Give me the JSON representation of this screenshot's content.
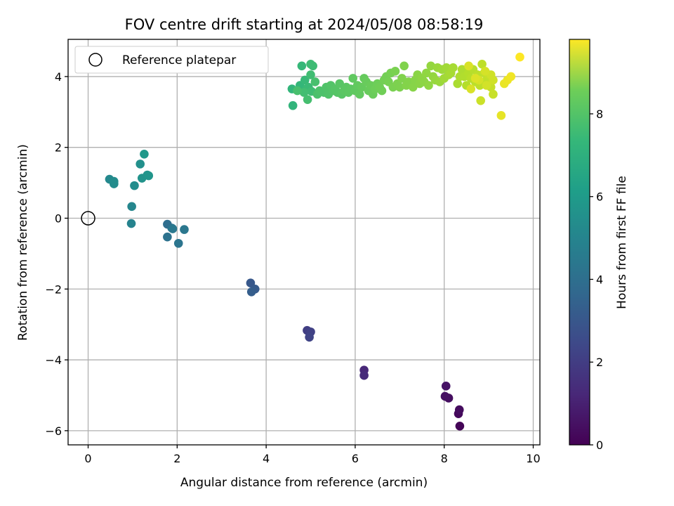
{
  "chart_data": {
    "type": "scatter",
    "title": "FOV centre drift starting at 2024/05/08 08:58:19",
    "xlabel": "Angular distance from reference (arcmin)",
    "ylabel": "Rotation from reference (arcmin)",
    "xlim": [
      -0.45,
      10.15
    ],
    "ylim": [
      -6.4,
      5.05
    ],
    "xticks": [
      0,
      2,
      4,
      6,
      8,
      10
    ],
    "yticks": [
      -6,
      -4,
      -2,
      0,
      2,
      4
    ],
    "xtick_labels": [
      "0",
      "2",
      "4",
      "6",
      "8",
      "10"
    ],
    "ytick_labels": [
      "−6",
      "−4",
      "−2",
      "0",
      "2",
      "4"
    ],
    "grid": true,
    "legend": {
      "placement": "top-left",
      "entries": [
        "Reference platepar"
      ]
    },
    "reference_point": {
      "x": 0,
      "y": 0
    },
    "colormap": "viridis",
    "colorbar": {
      "label": "Hours from first FF file",
      "range": [
        0,
        9.8
      ],
      "ticks": [
        0,
        2,
        4,
        6,
        8
      ],
      "tick_labels": [
        "0",
        "2",
        "4",
        "6",
        "8"
      ]
    },
    "points": [
      [
        8.35,
        -5.87,
        0.1
      ],
      [
        8.32,
        -5.52,
        0.2
      ],
      [
        8.34,
        -5.41,
        0.3
      ],
      [
        8.1,
        -5.08,
        0.35
      ],
      [
        8.02,
        -5.03,
        0.4
      ],
      [
        8.04,
        -4.74,
        0.5
      ],
      [
        6.2,
        -4.29,
        1.1
      ],
      [
        6.2,
        -4.44,
        1.2
      ],
      [
        4.92,
        -3.17,
        1.8
      ],
      [
        5.0,
        -3.21,
        1.9
      ],
      [
        4.97,
        -3.36,
        2.0
      ],
      [
        3.65,
        -1.83,
        2.7
      ],
      [
        3.75,
        -2.0,
        2.8
      ],
      [
        3.67,
        -2.08,
        2.9
      ],
      [
        1.78,
        -0.17,
        3.5
      ],
      [
        1.88,
        -0.28,
        3.6
      ],
      [
        1.78,
        -0.53,
        3.7
      ],
      [
        2.03,
        -0.71,
        3.8
      ],
      [
        2.16,
        -0.32,
        3.9
      ],
      [
        1.9,
        -0.3,
        3.95
      ],
      [
        0.97,
        -0.15,
        4.4
      ],
      [
        0.98,
        0.33,
        4.5
      ],
      [
        0.48,
        1.1,
        4.6
      ],
      [
        0.58,
        0.97,
        4.7
      ],
      [
        0.58,
        1.04,
        4.75
      ],
      [
        1.04,
        0.92,
        4.8
      ],
      [
        1.17,
        1.53,
        4.9
      ],
      [
        1.21,
        1.13,
        5.0
      ],
      [
        1.33,
        1.22,
        5.05
      ],
      [
        1.36,
        1.2,
        5.1
      ],
      [
        1.26,
        1.81,
        5.2
      ],
      [
        4.6,
        3.18,
        6.4
      ],
      [
        4.58,
        3.65,
        6.45
      ],
      [
        4.76,
        3.75,
        6.5
      ],
      [
        4.8,
        4.3,
        6.55
      ],
      [
        4.87,
        3.9,
        6.6
      ],
      [
        4.9,
        3.65,
        6.6
      ],
      [
        4.95,
        3.7,
        6.65
      ],
      [
        5.0,
        4.35,
        6.7
      ],
      [
        5.05,
        4.3,
        6.7
      ],
      [
        5.0,
        4.05,
        6.75
      ],
      [
        5.02,
        3.58,
        6.75
      ],
      [
        4.85,
        3.55,
        6.8
      ],
      [
        4.93,
        3.35,
        6.85
      ],
      [
        4.7,
        3.6,
        6.9
      ],
      [
        5.1,
        3.85,
        6.9
      ],
      [
        5.15,
        3.5,
        6.95
      ],
      [
        5.2,
        3.6,
        7.0
      ],
      [
        5.3,
        3.55,
        7.0
      ],
      [
        5.35,
        3.7,
        7.05
      ],
      [
        5.4,
        3.5,
        7.05
      ],
      [
        5.45,
        3.75,
        7.1
      ],
      [
        5.5,
        3.6,
        7.1
      ],
      [
        5.55,
        3.65,
        7.15
      ],
      [
        5.6,
        3.55,
        7.15
      ],
      [
        5.65,
        3.8,
        7.2
      ],
      [
        5.7,
        3.5,
        7.2
      ],
      [
        5.75,
        3.6,
        7.25
      ],
      [
        5.8,
        3.7,
        7.25
      ],
      [
        5.85,
        3.55,
        7.3
      ],
      [
        5.9,
        3.65,
        7.3
      ],
      [
        5.95,
        3.95,
        7.35
      ],
      [
        6.0,
        3.6,
        7.35
      ],
      [
        6.05,
        3.75,
        7.4
      ],
      [
        6.1,
        3.5,
        7.4
      ],
      [
        6.15,
        3.7,
        7.45
      ],
      [
        6.2,
        3.95,
        7.45
      ],
      [
        6.25,
        3.85,
        7.5
      ],
      [
        6.3,
        3.6,
        7.5
      ],
      [
        6.35,
        3.75,
        7.55
      ],
      [
        6.4,
        3.5,
        7.55
      ],
      [
        6.45,
        3.65,
        7.6
      ],
      [
        6.5,
        3.8,
        7.6
      ],
      [
        6.55,
        3.7,
        7.65
      ],
      [
        6.6,
        3.6,
        7.65
      ],
      [
        6.65,
        3.9,
        7.7
      ],
      [
        6.7,
        4.0,
        7.7
      ],
      [
        6.75,
        3.85,
        7.75
      ],
      [
        6.8,
        4.1,
        7.75
      ],
      [
        6.85,
        3.7,
        7.8
      ],
      [
        6.9,
        4.15,
        7.8
      ],
      [
        6.95,
        3.8,
        7.85
      ],
      [
        7.0,
        3.7,
        7.85
      ],
      [
        7.05,
        3.95,
        7.9
      ],
      [
        7.1,
        4.3,
        7.9
      ],
      [
        7.15,
        3.75,
        7.95
      ],
      [
        7.2,
        3.85,
        7.95
      ],
      [
        7.3,
        3.7,
        8.0
      ],
      [
        7.35,
        3.9,
        8.0
      ],
      [
        7.4,
        4.05,
        8.05
      ],
      [
        7.45,
        3.8,
        8.05
      ],
      [
        7.5,
        3.95,
        8.1
      ],
      [
        7.55,
        3.85,
        8.1
      ],
      [
        7.6,
        4.1,
        8.15
      ],
      [
        7.65,
        3.75,
        8.15
      ],
      [
        7.7,
        4.3,
        8.2
      ],
      [
        7.75,
        4.0,
        8.2
      ],
      [
        7.8,
        3.9,
        8.25
      ],
      [
        7.85,
        4.25,
        8.3
      ],
      [
        7.9,
        3.85,
        8.3
      ],
      [
        7.95,
        4.2,
        8.35
      ],
      [
        8.0,
        3.95,
        8.4
      ],
      [
        8.05,
        4.25,
        8.4
      ],
      [
        8.1,
        4.05,
        8.45
      ],
      [
        8.15,
        4.1,
        8.5
      ],
      [
        8.2,
        4.25,
        8.5
      ],
      [
        8.3,
        3.8,
        8.55
      ],
      [
        8.35,
        4.0,
        8.6
      ],
      [
        8.4,
        4.2,
        8.6
      ],
      [
        8.45,
        4.0,
        8.65
      ],
      [
        8.5,
        3.75,
        8.7
      ],
      [
        8.55,
        4.1,
        8.7
      ],
      [
        8.6,
        3.95,
        8.75
      ],
      [
        8.65,
        4.2,
        8.75
      ],
      [
        8.7,
        3.85,
        8.8
      ],
      [
        8.75,
        4.05,
        8.8
      ],
      [
        8.8,
        3.75,
        8.85
      ],
      [
        8.85,
        4.35,
        8.85
      ],
      [
        8.9,
        4.1,
        8.9
      ],
      [
        8.95,
        3.9,
        8.9
      ],
      [
        9.0,
        4.05,
        8.95
      ],
      [
        9.05,
        3.7,
        8.95
      ],
      [
        9.1,
        3.5,
        9.0
      ],
      [
        8.82,
        3.32,
        9.05
      ],
      [
        9.1,
        3.9,
        9.1
      ],
      [
        9.05,
        4.05,
        9.1
      ],
      [
        8.95,
        3.75,
        9.15
      ],
      [
        8.92,
        4.15,
        9.2
      ],
      [
        8.78,
        3.9,
        9.2
      ],
      [
        8.6,
        3.65,
        9.25
      ],
      [
        8.55,
        4.3,
        9.25
      ],
      [
        8.7,
        3.95,
        9.3
      ],
      [
        9.28,
        2.9,
        9.45
      ],
      [
        9.35,
        3.8,
        9.5
      ],
      [
        9.42,
        3.9,
        9.55
      ],
      [
        9.5,
        4.0,
        9.6
      ],
      [
        9.7,
        4.55,
        9.8
      ]
    ]
  }
}
